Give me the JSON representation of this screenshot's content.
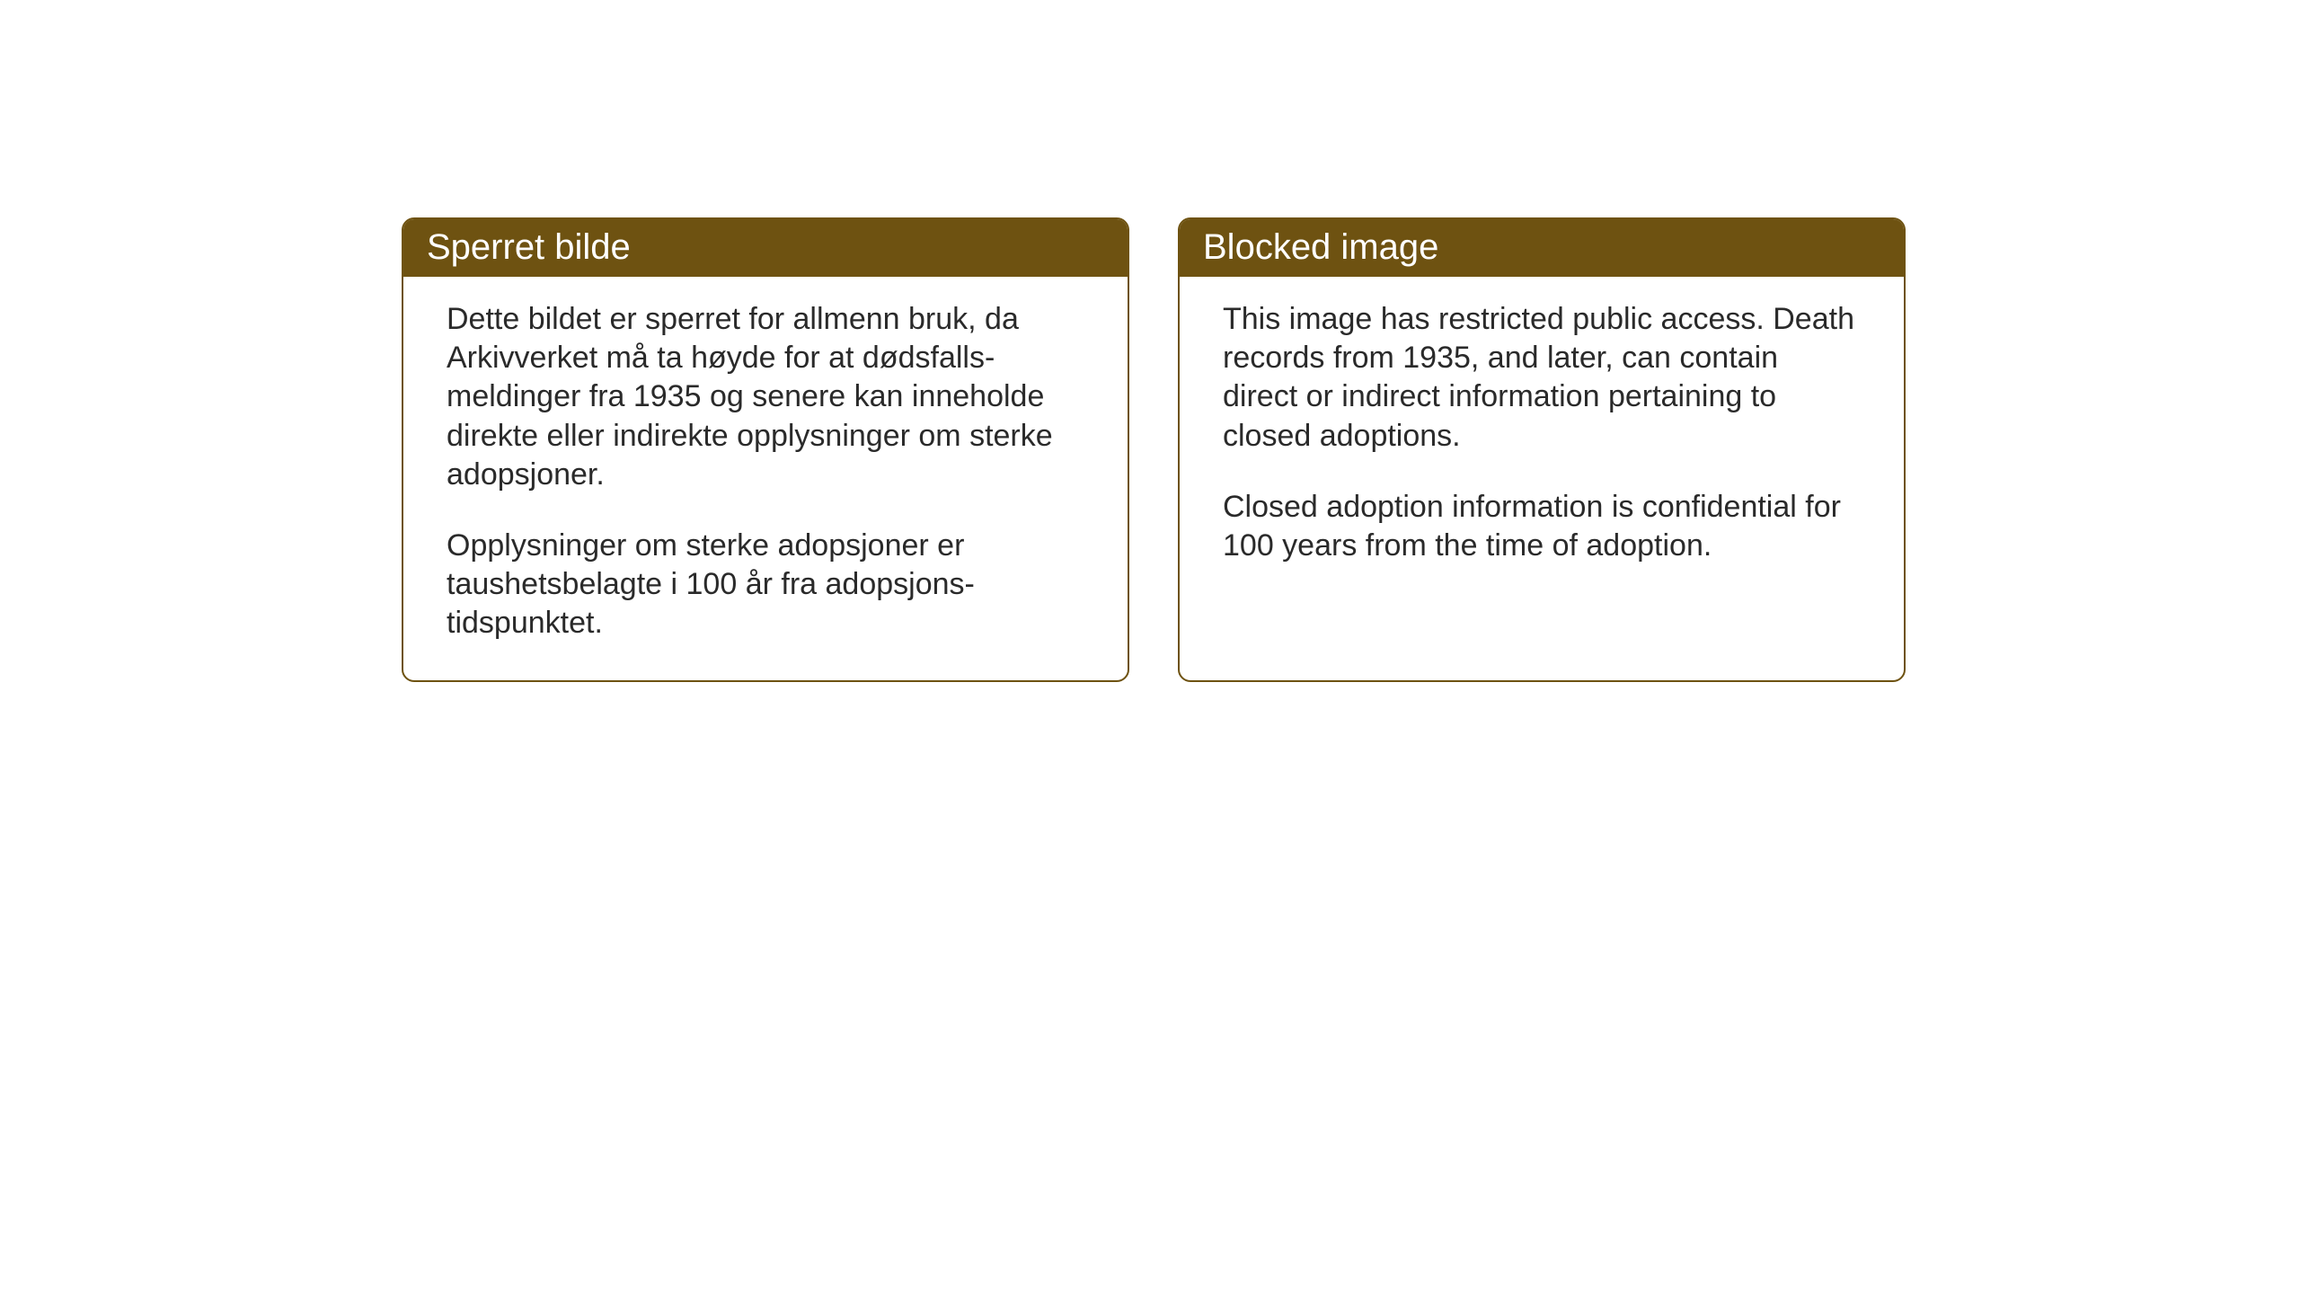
{
  "cards": {
    "norwegian": {
      "title": "Sperret bilde",
      "paragraph1": "Dette bildet er sperret for allmenn bruk, da Arkivverket må ta høyde for at dødsfalls-meldinger fra 1935 og senere kan inneholde direkte eller indirekte opplysninger om sterke adopsjoner.",
      "paragraph2": "Opplysninger om sterke adopsjoner er taushetsbelagte i 100 år fra adopsjons-tidspunktet."
    },
    "english": {
      "title": "Blocked image",
      "paragraph1": "This image has restricted public access. Death records from 1935, and later, can contain direct or indirect information pertaining to closed adoptions.",
      "paragraph2": "Closed adoption information is confidential for 100 years from the time of adoption."
    }
  },
  "styling": {
    "header_background": "#6e5211",
    "header_text_color": "#ffffff",
    "border_color": "#6e5211",
    "body_text_color": "#2a2a2a",
    "card_background": "#ffffff",
    "page_background": "#ffffff",
    "title_fontsize": 40,
    "body_fontsize": 34,
    "border_radius": 14,
    "border_width": 2
  }
}
